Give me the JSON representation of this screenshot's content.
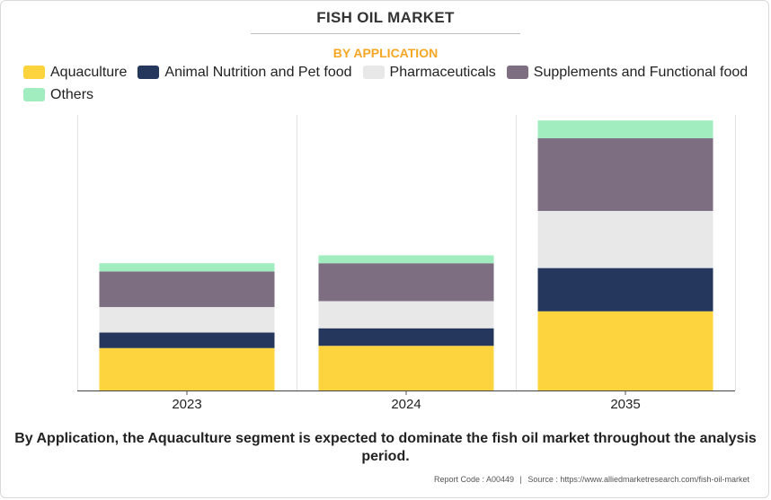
{
  "title": "FISH OIL MARKET",
  "subtitle": "BY APPLICATION",
  "caption": "By Application, the Aquaculture segment is expected to dominate the fish oil market throughout the analysis period.",
  "footer": {
    "report_code": "Report Code : A00449",
    "separator": "|",
    "source": "Source : https://www.alliedmarketresearch.com/fish-oil-market"
  },
  "chart_data": {
    "type": "bar",
    "stacked": true,
    "categories": [
      "2023",
      "2024",
      "2035"
    ],
    "series": [
      {
        "name": "Aquaculture",
        "color": "#fdd43d",
        "values": [
          15.0,
          15.8,
          28.0
        ]
      },
      {
        "name": "Animal Nutrition and Pet food",
        "color": "#25375c",
        "values": [
          5.5,
          6.2,
          15.3
        ]
      },
      {
        "name": "Pharmaceuticals",
        "color": "#e8e8e8",
        "values": [
          9.0,
          9.6,
          20.2
        ]
      },
      {
        "name": "Supplements and Functional food",
        "color": "#7d6e82",
        "values": [
          12.6,
          13.4,
          25.7
        ]
      },
      {
        "name": "Others",
        "color": "#a2edbf",
        "values": [
          2.9,
          2.8,
          6.3
        ]
      }
    ],
    "ylim": [
      0,
      100
    ],
    "grid": "vertical separators",
    "legend_position": "top"
  }
}
